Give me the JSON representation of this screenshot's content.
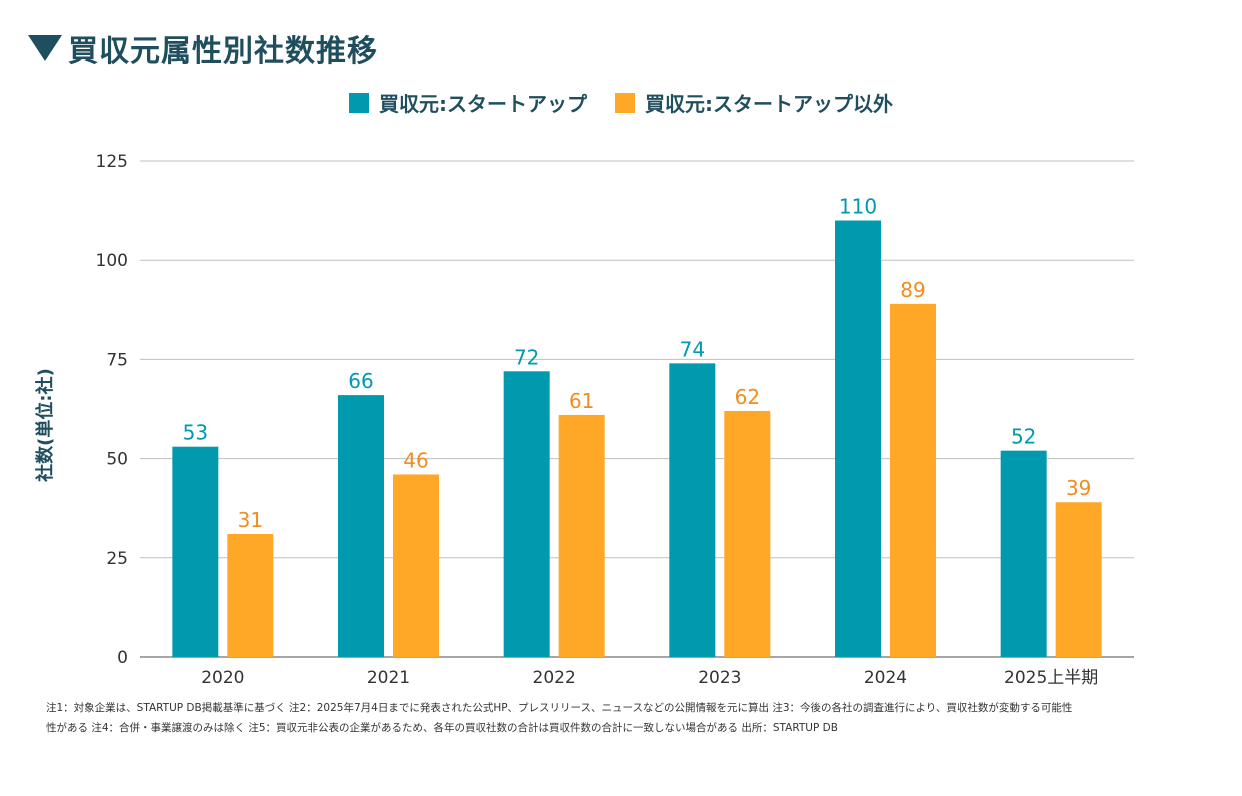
{
  "colors": {
    "startup": "#0099ad",
    "other": "#ffa726",
    "startup_label": "#0099ad",
    "other_label": "#f28c1e",
    "title": "#1f4e5f",
    "grid": "#bfbfbf"
  },
  "chart_data": {
    "type": "bar",
    "title": "買収元属性別社数推移",
    "ylabel": "社数(単位:社)",
    "xlabel": "",
    "ylim": [
      0,
      125
    ],
    "yticks": [
      0,
      25,
      50,
      75,
      100,
      125
    ],
    "categories": [
      "2020",
      "2021",
      "2022",
      "2023",
      "2024",
      "2025上半期"
    ],
    "series": [
      {
        "name": "買収元:スタートアップ",
        "values": [
          53,
          66,
          72,
          74,
          110,
          52
        ]
      },
      {
        "name": "買収元:スタートアップ以外",
        "values": [
          31,
          46,
          61,
          62,
          89,
          39
        ]
      }
    ],
    "legend_position": "top-center",
    "grid": true
  },
  "notes": {
    "line1": "注1：対象企業は、STARTUP DB掲載基準に基づく 注2：2025年7月4日までに発表された公式HP、プレスリリース、ニュースなどの公開情報を元に算出 注3：今後の各社の調査進行により、買収社数が変動する可能性",
    "line2": "性がある 注4：合併・事業譲渡のみは除く 注5：買収元非公表の企業があるため、各年の買収社数の合計は買収件数の合計に一致しない場合がある 出所：STARTUP DB"
  }
}
